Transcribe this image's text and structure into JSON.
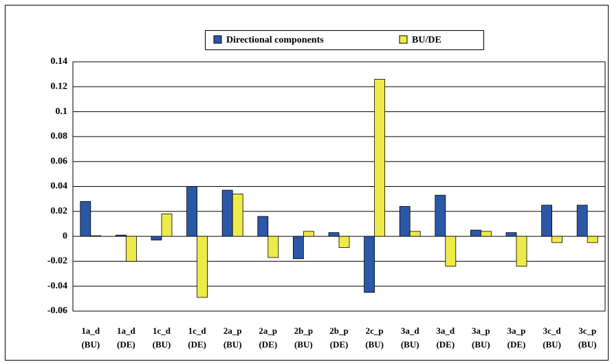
{
  "chart_data": {
    "type": "bar",
    "categories": [
      "1a_d\n(BU)",
      "1a_d\n(DE)",
      "1c_d\n(BU)",
      "1c_d\n(DE)",
      "2a_p\n(BU)",
      "2a_p\n(DE)",
      "2b_p\n(BU)",
      "2b_p\n(DE)",
      "2c_p\n(BU)",
      "3a_d\n(BU)",
      "3a_d\n(DE)",
      "3a_p\n(BU)",
      "3a_p\n(DE)",
      "3c_d\n(BU)",
      "3c_p\n(BU)"
    ],
    "series": [
      {
        "name": "Directional components",
        "color": "#2b57a7",
        "values": [
          0.028,
          0.001,
          -0.003,
          0.04,
          0.037,
          0.016,
          -0.018,
          0.003,
          -0.045,
          0.024,
          0.033,
          0.005,
          0.003,
          0.025,
          0.025
        ]
      },
      {
        "name": "BU/DE",
        "color": "#eeea4a",
        "values": [
          0.0005,
          -0.02,
          0.018,
          -0.049,
          0.034,
          -0.017,
          0.004,
          -0.009,
          0.126,
          0.004,
          -0.024,
          0.004,
          -0.024,
          -0.005,
          -0.005
        ]
      }
    ],
    "ylim": [
      -0.06,
      0.14
    ],
    "yticks": [
      -0.06,
      -0.04,
      -0.02,
      0,
      0.02,
      0.04,
      0.06,
      0.08,
      0.1,
      0.12,
      0.14
    ],
    "grid": true
  }
}
